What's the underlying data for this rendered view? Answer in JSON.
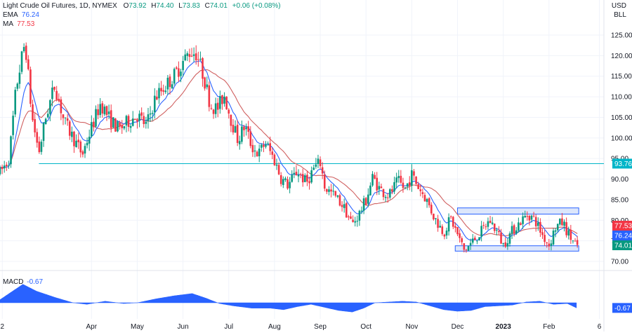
{
  "header": {
    "symbol": "Light Crude Oil Futures, 1D, NYMEX",
    "open_label": "O",
    "open": "73.92",
    "high_label": "H",
    "high": "74.40",
    "low_label": "L",
    "low": "73.83",
    "close_label": "C",
    "close": "74.01",
    "change": "+0.06 (+0.08%)"
  },
  "indicators": {
    "ema_label": "EMA",
    "ema_value": "76.24",
    "ma_label": "MA",
    "ma_value": "77.53",
    "macd_label": "MACD",
    "macd_value": "-0.67"
  },
  "axis": {
    "currency": "USD",
    "unit": "BLL"
  },
  "colors": {
    "up": "#089981",
    "down": "#f23645",
    "ema": "#2962ff",
    "ma": "#d06060",
    "support_line": "#00b5c8",
    "range_box_fill": "#dce6fb",
    "range_box_stroke": "#2962ff",
    "macd_fill": "#2962ff",
    "grid": "#f0f3fa"
  },
  "chart_data": {
    "type": "candlestick",
    "title": "Light Crude Oil Futures, 1D, NYMEX",
    "y_ticks": [
      "125.00",
      "120.00",
      "115.00",
      "110.00",
      "105.00",
      "100.00",
      "95.00",
      "90.00",
      "85.00",
      "80.00",
      "75.00",
      "70.00"
    ],
    "ylim": [
      67,
      131
    ],
    "x_ticks": [
      {
        "label": "2",
        "month": 2.05
      },
      {
        "label": "Apr",
        "month": 4.0
      },
      {
        "label": "May",
        "month": 5.0
      },
      {
        "label": "Jun",
        "month": 6.0
      },
      {
        "label": "Jul",
        "month": 7.0
      },
      {
        "label": "Aug",
        "month": 8.0
      },
      {
        "label": "Sep",
        "month": 9.0
      },
      {
        "label": "Oct",
        "month": 10.0
      },
      {
        "label": "Nov",
        "month": 11.0
      },
      {
        "label": "Dec",
        "month": 12.0
      },
      {
        "label": "2023",
        "month": 13.0
      },
      {
        "label": "Feb",
        "month": 14.0
      },
      {
        "label": "6",
        "month": 15.1
      }
    ],
    "x_range_months": [
      2.0,
      15.2
    ],
    "price_path": [
      {
        "t": 2.0,
        "p": 91.5
      },
      {
        "t": 2.2,
        "p": 95.0
      },
      {
        "t": 2.35,
        "p": 112.0
      },
      {
        "t": 2.45,
        "p": 118.0
      },
      {
        "t": 2.55,
        "p": 123.5
      },
      {
        "t": 2.7,
        "p": 105.0
      },
      {
        "t": 2.85,
        "p": 96.5
      },
      {
        "t": 3.0,
        "p": 105.0
      },
      {
        "t": 3.2,
        "p": 113.0
      },
      {
        "t": 3.4,
        "p": 104.0
      },
      {
        "t": 3.6,
        "p": 100.0
      },
      {
        "t": 3.8,
        "p": 96.0
      },
      {
        "t": 4.0,
        "p": 102.5
      },
      {
        "t": 4.2,
        "p": 108.5
      },
      {
        "t": 4.4,
        "p": 104.5
      },
      {
        "t": 4.6,
        "p": 102.0
      },
      {
        "t": 4.8,
        "p": 104.0
      },
      {
        "t": 5.0,
        "p": 105.5
      },
      {
        "t": 5.2,
        "p": 103.0
      },
      {
        "t": 5.4,
        "p": 110.0
      },
      {
        "t": 5.6,
        "p": 112.5
      },
      {
        "t": 5.8,
        "p": 115.0
      },
      {
        "t": 6.0,
        "p": 118.5
      },
      {
        "t": 6.15,
        "p": 121.0
      },
      {
        "t": 6.3,
        "p": 120.5
      },
      {
        "t": 6.45,
        "p": 115.0
      },
      {
        "t": 6.6,
        "p": 108.0
      },
      {
        "t": 6.75,
        "p": 107.0
      },
      {
        "t": 6.9,
        "p": 110.5
      },
      {
        "t": 7.05,
        "p": 104.5
      },
      {
        "t": 7.2,
        "p": 99.5
      },
      {
        "t": 7.35,
        "p": 103.0
      },
      {
        "t": 7.5,
        "p": 98.0
      },
      {
        "t": 7.65,
        "p": 96.0
      },
      {
        "t": 7.8,
        "p": 99.0
      },
      {
        "t": 8.0,
        "p": 94.5
      },
      {
        "t": 8.15,
        "p": 90.0
      },
      {
        "t": 8.3,
        "p": 88.5
      },
      {
        "t": 8.5,
        "p": 92.0
      },
      {
        "t": 8.7,
        "p": 89.0
      },
      {
        "t": 8.85,
        "p": 92.5
      },
      {
        "t": 9.0,
        "p": 94.0
      },
      {
        "t": 9.1,
        "p": 88.0
      },
      {
        "t": 9.3,
        "p": 86.0
      },
      {
        "t": 9.5,
        "p": 83.5
      },
      {
        "t": 9.7,
        "p": 79.0
      },
      {
        "t": 9.85,
        "p": 81.5
      },
      {
        "t": 10.0,
        "p": 85.0
      },
      {
        "t": 10.15,
        "p": 90.5
      },
      {
        "t": 10.3,
        "p": 87.5
      },
      {
        "t": 10.5,
        "p": 86.0
      },
      {
        "t": 10.7,
        "p": 89.5
      },
      {
        "t": 10.85,
        "p": 87.5
      },
      {
        "t": 11.0,
        "p": 91.0
      },
      {
        "t": 11.15,
        "p": 88.0
      },
      {
        "t": 11.3,
        "p": 85.5
      },
      {
        "t": 11.5,
        "p": 80.5
      },
      {
        "t": 11.7,
        "p": 77.0
      },
      {
        "t": 11.85,
        "p": 80.5
      },
      {
        "t": 12.0,
        "p": 76.5
      },
      {
        "t": 12.15,
        "p": 72.5
      },
      {
        "t": 12.3,
        "p": 74.5
      },
      {
        "t": 12.5,
        "p": 77.0
      },
      {
        "t": 12.7,
        "p": 80.0
      },
      {
        "t": 12.85,
        "p": 77.5
      },
      {
        "t": 13.0,
        "p": 74.0
      },
      {
        "t": 13.2,
        "p": 77.5
      },
      {
        "t": 13.4,
        "p": 80.0
      },
      {
        "t": 13.55,
        "p": 81.5
      },
      {
        "t": 13.7,
        "p": 80.0
      },
      {
        "t": 13.85,
        "p": 76.5
      },
      {
        "t": 14.0,
        "p": 74.0
      },
      {
        "t": 14.15,
        "p": 78.5
      },
      {
        "t": 14.3,
        "p": 79.5
      },
      {
        "t": 14.45,
        "p": 76.0
      },
      {
        "t": 14.6,
        "p": 74.01
      }
    ],
    "macd_path": [
      {
        "t": 2.0,
        "v": 0.4
      },
      {
        "t": 2.3,
        "v": 1.6
      },
      {
        "t": 2.5,
        "v": 2.4
      },
      {
        "t": 2.8,
        "v": 1.5
      },
      {
        "t": 3.2,
        "v": 0.7
      },
      {
        "t": 3.6,
        "v": 0.0
      },
      {
        "t": 3.9,
        "v": -0.2
      },
      {
        "t": 4.3,
        "v": 0.2
      },
      {
        "t": 4.7,
        "v": -0.1
      },
      {
        "t": 5.0,
        "v": 0.0
      },
      {
        "t": 5.4,
        "v": 0.5
      },
      {
        "t": 5.8,
        "v": 0.9
      },
      {
        "t": 6.2,
        "v": 1.2
      },
      {
        "t": 6.5,
        "v": 0.6
      },
      {
        "t": 6.8,
        "v": -0.1
      },
      {
        "t": 7.1,
        "v": -0.4
      },
      {
        "t": 7.5,
        "v": -0.7
      },
      {
        "t": 7.9,
        "v": -0.7
      },
      {
        "t": 8.2,
        "v": -0.9
      },
      {
        "t": 8.5,
        "v": -0.5
      },
      {
        "t": 8.8,
        "v": -0.2
      },
      {
        "t": 9.1,
        "v": -0.6
      },
      {
        "t": 9.4,
        "v": -1.0
      },
      {
        "t": 9.7,
        "v": -1.2
      },
      {
        "t": 9.95,
        "v": -0.7
      },
      {
        "t": 10.2,
        "v": 0.0
      },
      {
        "t": 10.5,
        "v": 0.1
      },
      {
        "t": 10.8,
        "v": 0.2
      },
      {
        "t": 11.1,
        "v": 0.1
      },
      {
        "t": 11.4,
        "v": -0.4
      },
      {
        "t": 11.7,
        "v": -0.9
      },
      {
        "t": 12.0,
        "v": -1.1
      },
      {
        "t": 12.3,
        "v": -1.0
      },
      {
        "t": 12.6,
        "v": -0.5
      },
      {
        "t": 12.9,
        "v": -0.4
      },
      {
        "t": 13.2,
        "v": -0.3
      },
      {
        "t": 13.5,
        "v": 0.1
      },
      {
        "t": 13.8,
        "v": 0.2
      },
      {
        "t": 14.1,
        "v": -0.2
      },
      {
        "t": 14.4,
        "v": -0.1
      },
      {
        "t": 14.6,
        "v": -0.67
      }
    ],
    "support_line": {
      "value": 93.76,
      "label": "93.76",
      "from_month": 2.85
    },
    "range_box_top": {
      "y_from": 81.5,
      "y_to": 83.0,
      "from_month": 12.0,
      "to_month": 14.65
    },
    "range_box_bottom": {
      "y_from": 72.5,
      "y_to": 73.8,
      "from_month": 11.95,
      "to_month": 14.65
    },
    "price_tags": [
      {
        "label": "77.53",
        "value": 77.53,
        "color": "#f23645"
      },
      {
        "label": "76.24",
        "value": 76.24,
        "color": "#2962ff"
      },
      {
        "label": "74.01",
        "value": 74.01,
        "color": "#089981"
      }
    ],
    "macd_tag": {
      "label": "-0.67",
      "value": -0.67
    },
    "macd_ylim": [
      -3.0,
      3.0
    ]
  }
}
